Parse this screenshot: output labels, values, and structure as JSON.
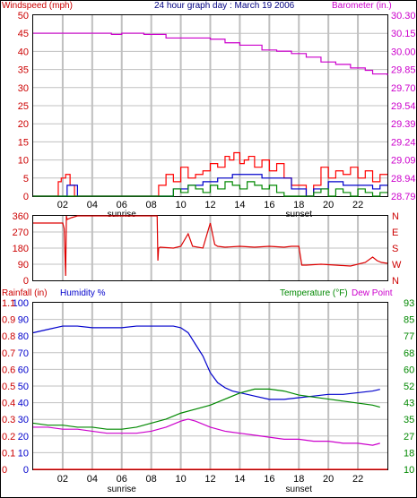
{
  "chart_data": [
    {
      "type": "line",
      "title": "24 hour graph day : March 19 2006",
      "ylabel_left": "Windspeed (mph)",
      "ylabel_right": "Barometer (in.)",
      "x_ticks": [
        "02",
        "04",
        "06",
        "08",
        "10",
        "12",
        "14",
        "16",
        "18",
        "20",
        "22"
      ],
      "x_annotations": [
        "sunrise",
        "sunset"
      ],
      "y_left_ticks": [
        "0",
        "5",
        "10",
        "15",
        "20",
        "25",
        "30",
        "35",
        "40",
        "45",
        "50"
      ],
      "y_left_range": [
        0,
        50
      ],
      "y_right_ticks": [
        "28.79",
        "28.94",
        "29.09",
        "29.24",
        "29.39",
        "29.54",
        "29.70",
        "29.85",
        "30.00",
        "30.15",
        "30.30"
      ],
      "y_right_range": [
        28.79,
        30.3
      ],
      "colors": {
        "axis_left": "#cc0000",
        "axis_right": "#cc00cc",
        "wind_gust": "#ff0000",
        "wind_avg": "#0000cc",
        "wind_low": "#008800",
        "barometer": "#cc00cc",
        "title": "#000080"
      },
      "series": [
        {
          "key": "barometer",
          "axis": "right",
          "x": [
            0,
            5,
            5.3,
            6,
            7.5,
            9,
            10.5,
            12,
            13,
            14,
            15.5,
            16.5,
            17.5,
            18.5,
            19.5,
            20.5,
            21.5,
            22.5,
            23,
            24
          ],
          "y": [
            30.15,
            30.15,
            30.14,
            30.15,
            30.14,
            30.11,
            30.11,
            30.1,
            30.07,
            30.05,
            30.01,
            30.0,
            29.98,
            29.95,
            29.91,
            29.89,
            29.86,
            29.84,
            29.81,
            29.8
          ]
        },
        {
          "key": "wind_gust",
          "axis": "left",
          "x": [
            0,
            1.5,
            1.7,
            1.9,
            2.2,
            2.5,
            2.8,
            3.0,
            3.3,
            7.5,
            8.5,
            9,
            9.5,
            10,
            10.5,
            11,
            11.5,
            12,
            12.5,
            13,
            13.3,
            13.6,
            14,
            14.3,
            14.6,
            15,
            15.5,
            16,
            16.5,
            17,
            17.5,
            18.5,
            19,
            19.5,
            20,
            20.5,
            21,
            21.5,
            22,
            22.5,
            23,
            23.5
          ],
          "y": [
            0,
            0,
            4,
            5,
            6,
            3,
            0,
            0,
            0,
            0,
            3,
            6,
            4,
            8,
            5,
            6,
            7,
            9,
            8,
            11,
            10,
            12,
            9,
            10,
            11,
            8,
            10,
            7,
            9,
            5,
            3,
            0,
            3,
            8,
            5,
            7,
            6,
            8,
            5,
            7,
            4,
            6
          ]
        },
        {
          "key": "wind_avg",
          "axis": "left",
          "x": [
            0,
            2.0,
            2.3,
            2.6,
            3.0,
            8.5,
            9.5,
            10.5,
            11.5,
            12.5,
            13.5,
            14.5,
            15.5,
            16.5,
            17.5,
            18.5,
            19,
            20,
            21,
            22,
            23,
            23.5
          ],
          "y": [
            0,
            0,
            3,
            3,
            0,
            0,
            2,
            3,
            4,
            5,
            6,
            6,
            5,
            5,
            2,
            0,
            2,
            4,
            3,
            3,
            2,
            3
          ]
        },
        {
          "key": "wind_low",
          "axis": "left",
          "x": [
            0,
            9,
            9.5,
            10,
            10.5,
            11,
            11.5,
            12,
            12.5,
            13,
            13.5,
            14,
            14.5,
            15,
            15.5,
            16,
            16.5,
            17,
            17.5,
            18.5,
            19,
            19.5,
            20,
            20.5,
            21,
            21.5,
            22,
            22.5,
            23,
            23.5
          ],
          "y": [
            0,
            0,
            2,
            1,
            3,
            2,
            1,
            3,
            2,
            4,
            3,
            2,
            4,
            3,
            2,
            3,
            1,
            0,
            0,
            0,
            1,
            2,
            0,
            2,
            1,
            0,
            2,
            1,
            0,
            1
          ]
        }
      ]
    },
    {
      "type": "line",
      "y_left_ticks": [
        "0",
        "90",
        "180",
        "270",
        "360"
      ],
      "y_left_range": [
        0,
        360
      ],
      "y_right_ticks": [
        "N",
        "W",
        "S",
        "E",
        "N"
      ],
      "series": [
        {
          "key": "wind_direction",
          "x": [
            0,
            2.0,
            2.1,
            2.2,
            2.25,
            2.3,
            2.6,
            3.0,
            3.5,
            8.4,
            8.45,
            8.5,
            8.6,
            9.5,
            10,
            10.5,
            10.8,
            11.5,
            12.0,
            12.3,
            12.5,
            13,
            14,
            15,
            16,
            17,
            17.5,
            18.0,
            18.2,
            18.5,
            19.5,
            20.5,
            21.5,
            22.5,
            23.0,
            23.3,
            23.6,
            24
          ],
          "y": [
            320,
            320,
            290,
            25,
            360,
            340,
            350,
            360,
            360,
            360,
            110,
            180,
            185,
            180,
            190,
            260,
            190,
            180,
            320,
            200,
            190,
            185,
            190,
            185,
            190,
            185,
            190,
            190,
            85,
            85,
            90,
            85,
            80,
            100,
            130,
            110,
            100,
            95
          ]
        }
      ]
    },
    {
      "type": "line",
      "ylabel_left_1": "Rainfall (in)",
      "ylabel_left_2": "Humidity %",
      "ylabel_right_1": "Temperature (°F)",
      "ylabel_right_2": "Dew Point",
      "x_ticks": [
        "02",
        "04",
        "06",
        "08",
        "10",
        "12",
        "14",
        "16",
        "18",
        "20",
        "22"
      ],
      "x_annotations": [
        "sunrise",
        "sunset"
      ],
      "y_rain_ticks": [
        "0",
        "0.1",
        "0.2",
        "0.3",
        "0.4",
        "0.5",
        "0.6",
        "0.7",
        "0.8",
        "0.9",
        "1.1"
      ],
      "y_humidity_ticks": [
        "0",
        "10",
        "20",
        "30",
        "40",
        "50",
        "60",
        "70",
        "80",
        "90",
        "100"
      ],
      "y_humidity_range": [
        0,
        100
      ],
      "y_temp_ticks": [
        "10",
        "18",
        "27",
        "35",
        "43",
        "52",
        "60",
        "68",
        "77",
        "85",
        "93"
      ],
      "y_temp_range": [
        10,
        93
      ],
      "colors": {
        "rain": "#ff0000",
        "humidity": "#0000cc",
        "temperature": "#008800",
        "dewpoint": "#cc00cc"
      },
      "series": [
        {
          "key": "humidity",
          "axis": "humidity",
          "x": [
            0,
            1,
            2,
            3,
            4,
            5,
            6,
            7,
            8,
            9,
            9.5,
            10,
            10.5,
            11,
            11.5,
            12,
            12.5,
            13,
            13.5,
            14,
            15,
            16,
            17,
            18,
            19,
            20,
            21,
            22,
            23,
            23.5
          ],
          "y": [
            82,
            84,
            86,
            86,
            85,
            85,
            85,
            86,
            86,
            86,
            86,
            85,
            82,
            75,
            68,
            58,
            52,
            49,
            47,
            46,
            44,
            42,
            42,
            43,
            44,
            45,
            45,
            46,
            47,
            48
          ]
        },
        {
          "key": "temperature",
          "axis": "temp",
          "x": [
            0,
            1,
            2,
            3,
            4,
            5,
            6,
            7,
            8,
            9,
            10,
            11,
            12,
            13,
            14,
            15,
            16,
            17,
            18,
            19,
            20,
            21,
            22,
            23,
            23.5
          ],
          "y": [
            33,
            32,
            32,
            31,
            31,
            30,
            30,
            31,
            33,
            35,
            38,
            40,
            42,
            45,
            48,
            50,
            50,
            49,
            47,
            46,
            45,
            44,
            43,
            42,
            41
          ]
        },
        {
          "key": "dewpoint",
          "axis": "temp",
          "x": [
            0,
            1,
            2,
            3,
            4,
            5,
            6,
            7,
            8,
            9,
            10,
            10.5,
            11,
            12,
            13,
            14,
            15,
            16,
            17,
            18,
            19,
            20,
            21,
            22,
            23,
            23.5
          ],
          "y": [
            31,
            31,
            30,
            30,
            29,
            28,
            28,
            28,
            29,
            31,
            34,
            35,
            34,
            31,
            29,
            28,
            27,
            26,
            25,
            25,
            24,
            24,
            23,
            23,
            22,
            23
          ]
        },
        {
          "key": "rainfall",
          "axis": "rain",
          "x": [
            0,
            24
          ],
          "y": [
            0,
            0
          ]
        }
      ]
    }
  ]
}
